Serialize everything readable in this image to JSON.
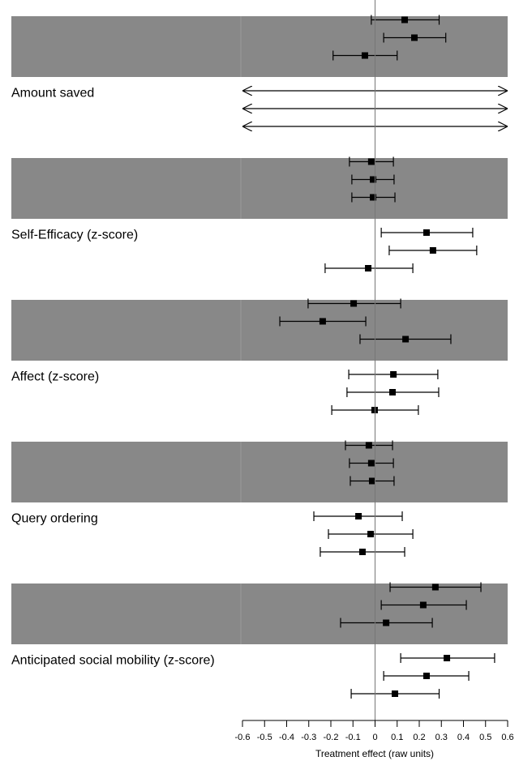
{
  "chart_data": {
    "type": "forest",
    "xlabel": "Treatment effect (raw units)",
    "xlim": [
      -0.6,
      0.6
    ],
    "xticks": [
      -0.6,
      -0.5,
      -0.4,
      -0.3,
      -0.2,
      -0.1,
      0,
      0.1,
      0.2,
      0.3,
      0.4,
      0.5,
      0.6
    ],
    "band_color": "#888888",
    "groups": [
      {
        "shaded": true,
        "estimates": [
          0.134,
          0.178,
          -0.046
        ],
        "lower": [
          -0.017,
          0.039,
          -0.19
        ],
        "upper": [
          0.29,
          0.32,
          0.1
        ]
      },
      {
        "label": "Amount saved",
        "shaded": false
      },
      {
        "shaded": true,
        "estimates": [
          -0.017,
          -0.009,
          -0.009
        ],
        "lower": [
          -0.116,
          -0.105,
          -0.105
        ],
        "upper": [
          0.083,
          0.086,
          0.09
        ]
      },
      {
        "label": "Self-Efficacy (z-score)",
        "shaded": false,
        "estimates": [
          0.233,
          0.262,
          -0.031
        ],
        "lower": [
          0.028,
          0.064,
          -0.226
        ],
        "upper": [
          0.442,
          0.46,
          0.171
        ]
      },
      {
        "shaded": true,
        "estimates": [
          -0.097,
          -0.237,
          0.138
        ],
        "lower": [
          -0.303,
          -0.431,
          -0.068
        ],
        "upper": [
          0.116,
          -0.042,
          0.343
        ]
      },
      {
        "label": "Affect (z-score)",
        "shaded": false,
        "estimates": [
          0.083,
          0.079,
          -0.002
        ],
        "lower": [
          -0.119,
          -0.127,
          -0.196
        ],
        "upper": [
          0.284,
          0.288,
          0.196
        ]
      },
      {
        "shaded": true,
        "estimates": [
          -0.028,
          -0.017,
          -0.013
        ],
        "lower": [
          -0.134,
          -0.116,
          -0.112
        ],
        "upper": [
          0.079,
          0.083,
          0.086
        ]
      },
      {
        "label": "Query ordering",
        "shaded": false,
        "estimates": [
          -0.075,
          -0.02,
          -0.057
        ],
        "lower": [
          -0.277,
          -0.211,
          -0.248
        ],
        "upper": [
          0.123,
          0.171,
          0.134
        ]
      },
      {
        "shaded": true,
        "estimates": [
          0.273,
          0.218,
          0.05
        ],
        "lower": [
          0.068,
          0.028,
          -0.156
        ],
        "upper": [
          0.479,
          0.413,
          0.259
        ]
      },
      {
        "label": "Anticipated social mobility (z-score)",
        "shaded": false,
        "estimates": [
          0.325,
          0.233,
          0.09
        ],
        "lower": [
          0.116,
          0.039,
          -0.108
        ],
        "upper": [
          0.541,
          0.424,
          0.29
        ]
      }
    ]
  }
}
